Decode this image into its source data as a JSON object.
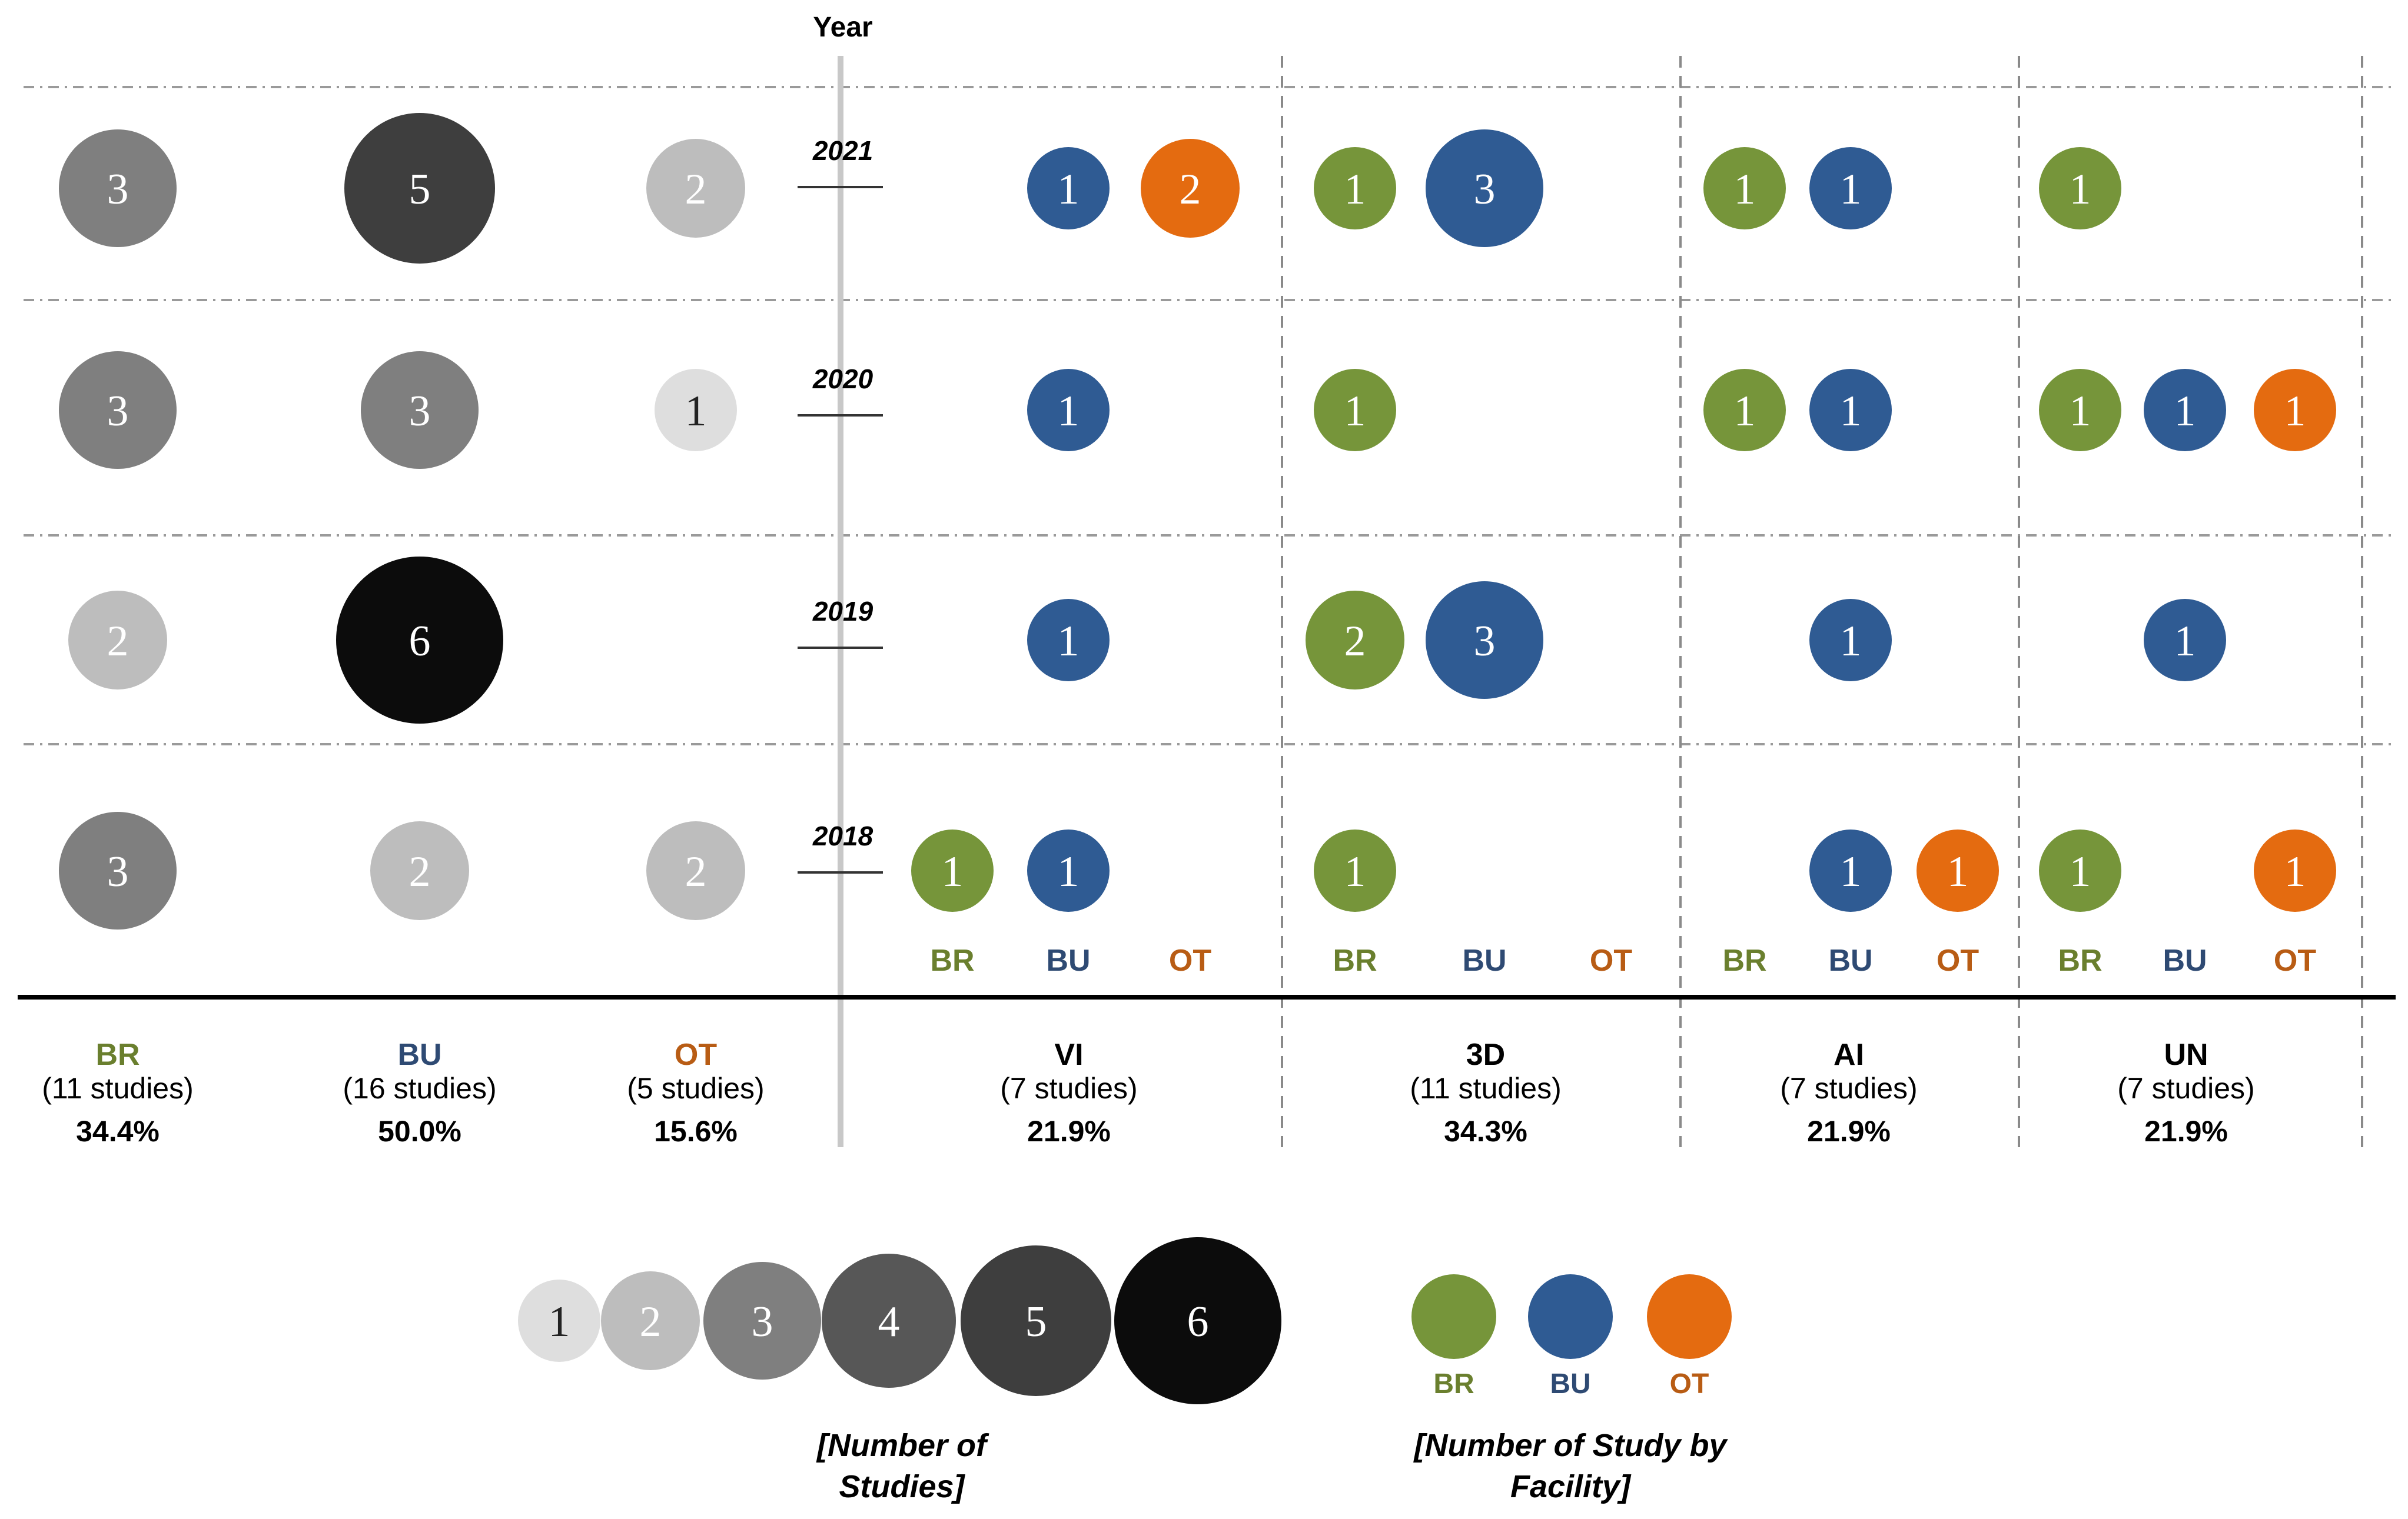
{
  "chart_data": {
    "type": "bubble-matrix",
    "y_axis_label": "Year",
    "years": [
      "2021",
      "2020",
      "2019",
      "2018"
    ],
    "building_types": [
      {
        "code": "BR",
        "color": "#6a7f2e",
        "studies_label": "(11 studies)",
        "percent": "34.4%",
        "values": [
          3,
          3,
          2,
          3
        ]
      },
      {
        "code": "BU",
        "color": "#2e4a73",
        "studies_label": "(16 studies)",
        "percent": "50.0%",
        "values": [
          5,
          3,
          6,
          2
        ]
      },
      {
        "code": "OT",
        "color": "#b85c14",
        "studies_label": "(5 studies)",
        "percent": "15.6%",
        "values": [
          2,
          1,
          null,
          2
        ]
      }
    ],
    "technologies": [
      {
        "code": "VI",
        "studies_label": "(7 studies)",
        "percent": "21.9%",
        "values": {
          "BR": [
            null,
            null,
            null,
            1
          ],
          "BU": [
            1,
            1,
            1,
            1
          ],
          "OT": [
            2,
            null,
            null,
            null
          ]
        }
      },
      {
        "code": "3D",
        "studies_label": "(11 studies)",
        "percent": "34.3%",
        "values": {
          "BR": [
            1,
            1,
            2,
            1
          ],
          "BU": [
            3,
            null,
            3,
            null
          ],
          "OT": [
            null,
            null,
            null,
            null
          ]
        }
      },
      {
        "code": "AI",
        "studies_label": "(7 studies)",
        "percent": "21.9%",
        "values": {
          "BR": [
            1,
            1,
            null,
            null
          ],
          "BU": [
            1,
            1,
            1,
            1
          ],
          "OT": [
            null,
            null,
            null,
            1
          ]
        }
      },
      {
        "code": "UN",
        "studies_label": "(7 studies)",
        "percent": "21.9%",
        "values": {
          "BR": [
            1,
            1,
            null,
            1
          ],
          "BU": [
            null,
            1,
            1,
            null
          ],
          "OT": [
            null,
            1,
            null,
            1
          ]
        }
      }
    ],
    "facility_colors": {
      "BR": "#76953a",
      "BU": "#2f5b93",
      "OT": "#e46b10"
    },
    "count_scale": {
      "values": [
        1,
        2,
        3,
        4,
        5,
        6
      ],
      "fills": [
        "#dedede",
        "#bdbdbd",
        "#7f7f7f",
        "#575757",
        "#3e3e3e",
        "#0c0c0c"
      ],
      "title": "[Number of Studies]"
    },
    "facility_legend": {
      "items": [
        "BR",
        "BU",
        "OT"
      ],
      "title": "[Number of Study by Facility]"
    }
  }
}
